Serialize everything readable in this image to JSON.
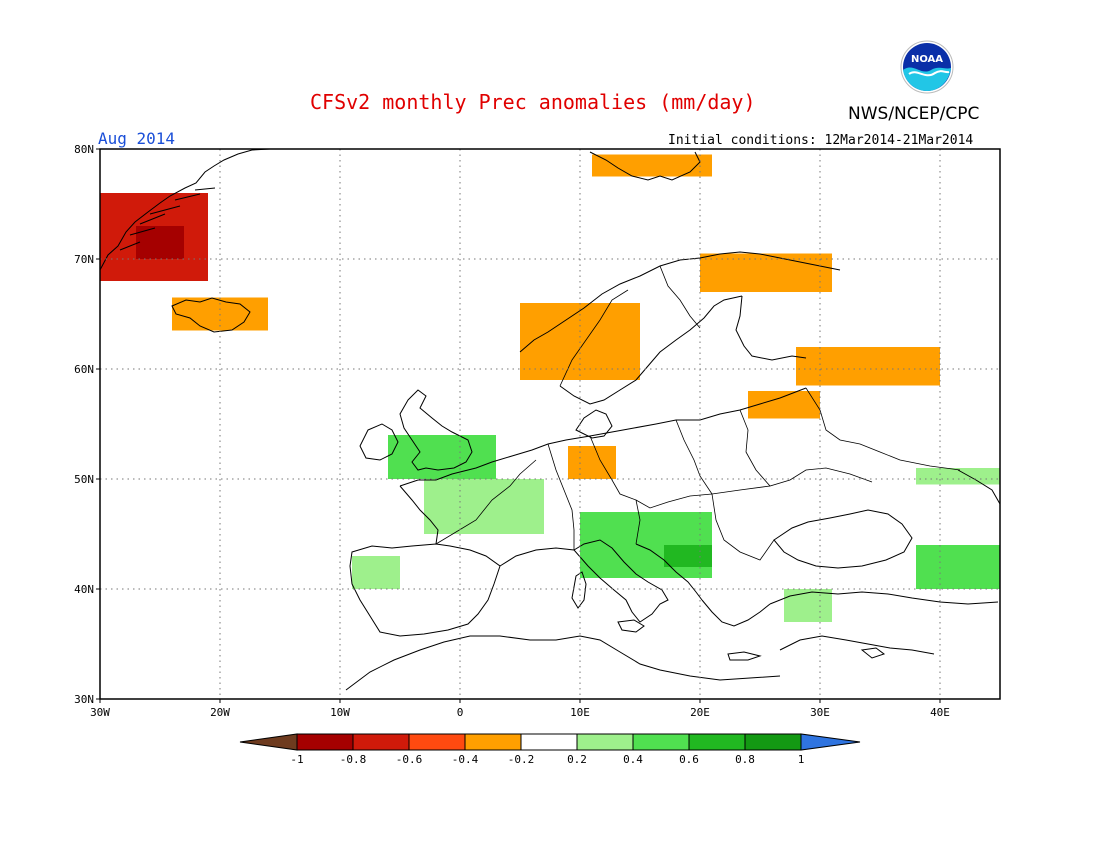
{
  "header": {
    "title": "CFSv2 monthly Prec anomalies (mm/day)",
    "agency": "NWS/NCEP/CPC",
    "logo_text": "NOAA",
    "period": "Aug 2014",
    "initial_conditions": "Initial conditions: 12Mar2014-21Mar2014"
  },
  "map": {
    "lon_range": [
      -30,
      45
    ],
    "lat_range": [
      30,
      80
    ],
    "lat_ticks": [
      {
        "value": 80,
        "label": "80N"
      },
      {
        "value": 70,
        "label": "70N"
      },
      {
        "value": 60,
        "label": "60N"
      },
      {
        "value": 50,
        "label": "50N"
      },
      {
        "value": 40,
        "label": "40N"
      },
      {
        "value": 30,
        "label": "30N"
      }
    ],
    "lon_ticks": [
      {
        "value": -30,
        "label": "30W"
      },
      {
        "value": -20,
        "label": "20W"
      },
      {
        "value": -10,
        "label": "10W"
      },
      {
        "value": 0,
        "label": "0"
      },
      {
        "value": 10,
        "label": "10E"
      },
      {
        "value": 20,
        "label": "20E"
      },
      {
        "value": 30,
        "label": "30E"
      },
      {
        "value": 40,
        "label": "40E"
      }
    ],
    "anomaly_regions": [
      {
        "name": "Greenland east coast",
        "lon": [
          -30,
          -21
        ],
        "lat": [
          68,
          76
        ],
        "value": -0.7
      },
      {
        "name": "Greenland core",
        "lon": [
          -27,
          -23
        ],
        "lat": [
          70,
          73
        ],
        "value": -0.9
      },
      {
        "name": "Svalbard",
        "lon": [
          11,
          21
        ],
        "lat": [
          77.5,
          79.5
        ],
        "value": -0.3
      },
      {
        "name": "Iceland",
        "lon": [
          -24,
          -16
        ],
        "lat": [
          63.5,
          66.5
        ],
        "value": -0.4
      },
      {
        "name": "Norway coast",
        "lon": [
          5,
          15
        ],
        "lat": [
          59,
          66
        ],
        "value": -0.3
      },
      {
        "name": "Northern Scandinavia",
        "lon": [
          20,
          31
        ],
        "lat": [
          67,
          70.5
        ],
        "value": -0.3
      },
      {
        "name": "Western Russia",
        "lon": [
          28,
          40
        ],
        "lat": [
          58.5,
          62
        ],
        "value": -0.3
      },
      {
        "name": "Baltic",
        "lon": [
          24,
          30
        ],
        "lat": [
          55.5,
          58
        ],
        "value": -0.3
      },
      {
        "name": "Central Europe",
        "lon": [
          9,
          13
        ],
        "lat": [
          50,
          53
        ],
        "value": -0.3
      },
      {
        "name": "British Isles",
        "lon": [
          -6,
          3
        ],
        "lat": [
          50,
          54
        ],
        "value": 0.4
      },
      {
        "name": "France",
        "lon": [
          -3,
          7
        ],
        "lat": [
          45,
          50
        ],
        "value": 0.3
      },
      {
        "name": "Italy and Adriatic",
        "lon": [
          10,
          21
        ],
        "lat": [
          41,
          47
        ],
        "value": 0.4
      },
      {
        "name": "Balkans",
        "lon": [
          17,
          21
        ],
        "lat": [
          42,
          44
        ],
        "value": 0.6
      },
      {
        "name": "Eastern Ukraine",
        "lon": [
          38,
          45
        ],
        "lat": [
          49.5,
          51
        ],
        "value": 0.3
      },
      {
        "name": "Caucasus",
        "lon": [
          38,
          45
        ],
        "lat": [
          40,
          44
        ],
        "value": 0.5
      },
      {
        "name": "Turkey",
        "lon": [
          27,
          31
        ],
        "lat": [
          37,
          40
        ],
        "value": 0.3
      },
      {
        "name": "Iberia northwest",
        "lon": [
          -9,
          -5
        ],
        "lat": [
          40,
          43
        ],
        "value": 0.3
      }
    ]
  },
  "colorbar": {
    "ticks": [
      "-1",
      "-0.8",
      "-0.6",
      "-0.4",
      "-0.2",
      "0.2",
      "0.4",
      "0.6",
      "0.8",
      "1"
    ],
    "colors": [
      "#6e3b1f",
      "#a50000",
      "#d01a0a",
      "#ff4a10",
      "#ff9f00",
      "#ffffff",
      "#9ef08c",
      "#50e050",
      "#21b821",
      "#139913",
      "#2f74e0"
    ]
  }
}
